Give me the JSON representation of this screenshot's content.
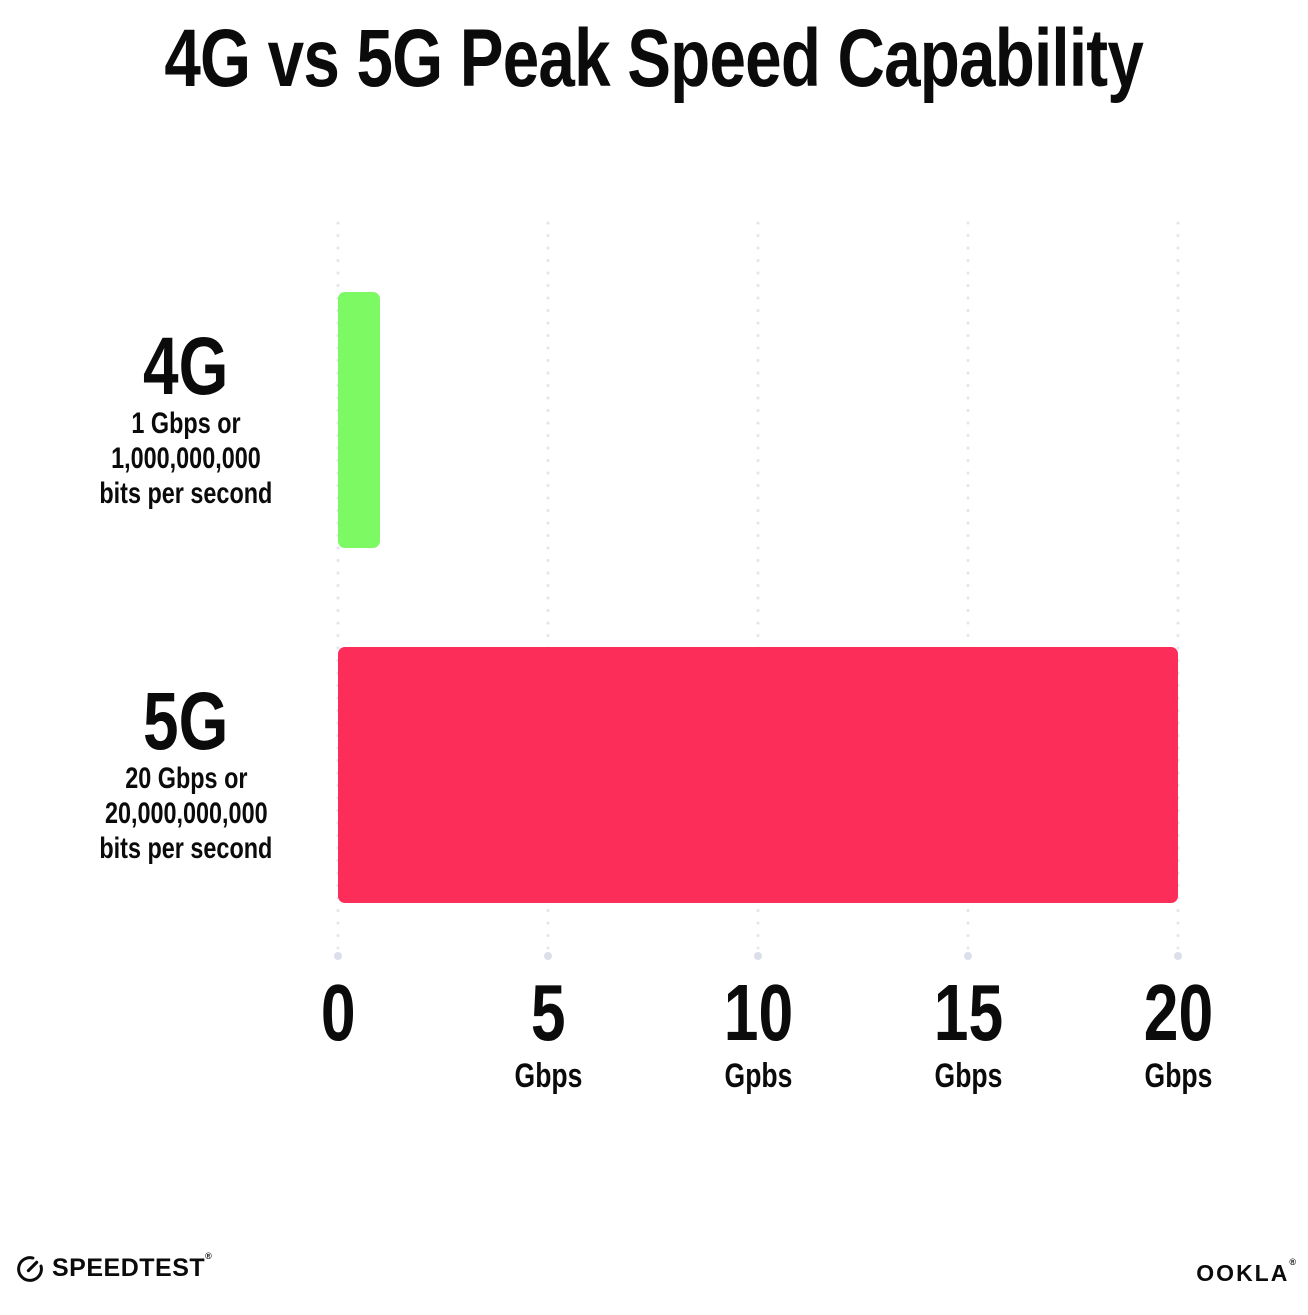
{
  "chart_data": {
    "type": "bar",
    "orientation": "horizontal",
    "title": "4G vs 5G Peak Speed Capability",
    "xlabel": "Gbps",
    "ylabel": "",
    "xmin": 0,
    "xmax": 20,
    "grid": "dotted-vertical-gridlines",
    "legend": "none",
    "categories": [
      "4G",
      "5G"
    ],
    "values": [
      1,
      20
    ],
    "rows": [
      {
        "category": "4G",
        "value": 1,
        "color": "#7DF964",
        "sublabel_lines": [
          "1 Gbps or",
          "1,000,000,000",
          "bits per second"
        ]
      },
      {
        "category": "5G",
        "value": 20,
        "color": "#FC2D58",
        "sublabel_lines": [
          "20 Gbps or",
          "20,000,000,000",
          "bits per second"
        ]
      }
    ],
    "ticks": [
      {
        "value": 0,
        "label": "0",
        "unit": ""
      },
      {
        "value": 5,
        "label": "5",
        "unit": "Gbps"
      },
      {
        "value": 10,
        "label": "10",
        "unit": "Gpbs"
      },
      {
        "value": 15,
        "label": "15",
        "unit": "Gbps"
      },
      {
        "value": 20,
        "label": "20",
        "unit": "Gbps"
      }
    ]
  },
  "footer": {
    "speedtest": {
      "text": "SPEEDTEST",
      "mark": "®"
    },
    "ookla": {
      "text": "OOKLA",
      "mark": "®"
    }
  },
  "colors": {
    "bar_4g": "#7DF964",
    "bar_5g": "#FC2D58",
    "grid_dot": "#E3E5EF",
    "grid_end_dot": "#DCDFEA",
    "text": "#0B0B0B",
    "background": "#FFFFFF"
  }
}
